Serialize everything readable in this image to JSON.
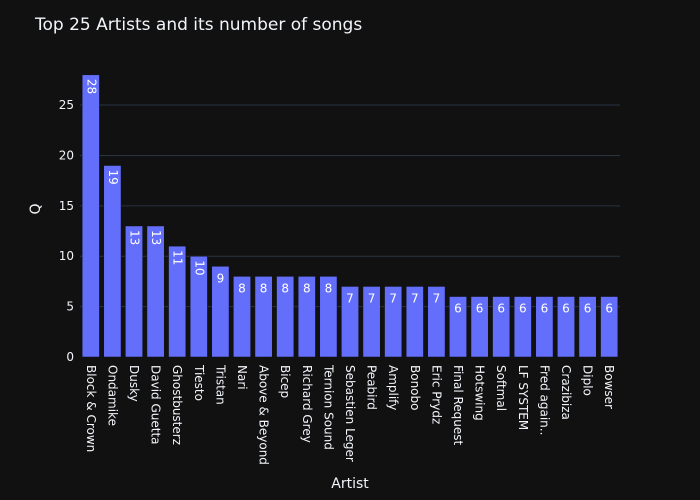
{
  "chart_data": {
    "type": "bar",
    "title": "Top 25 Artists and its number of songs",
    "xlabel": "Artist",
    "ylabel": "Q",
    "ylim": [
      0,
      29.47
    ],
    "yticks": [
      0,
      5,
      10,
      15,
      20,
      25
    ],
    "grid": true,
    "categories": [
      "Block & Crown",
      "Ondamike",
      "Dusky",
      "David Guetta",
      "Ghostbusterz",
      "Tiesto",
      "Tristan",
      "Nari",
      "Above & Beyond",
      "Bicep",
      "Richard Grey",
      "Ternion Sound",
      "Sebastien Leger",
      "Peabird",
      "Amplify",
      "Bonobo",
      "Eric Prydz",
      "Final Request",
      "Hotswing",
      "Softmal",
      "LF SYSTEM",
      "Fred again..",
      "Crazibiza",
      "Diplo",
      "Bowser"
    ],
    "values": [
      28,
      19,
      13,
      13,
      11,
      10,
      9,
      8,
      8,
      8,
      8,
      8,
      7,
      7,
      7,
      7,
      7,
      6,
      6,
      6,
      6,
      6,
      6,
      6,
      6
    ],
    "bar_color": "#636efa",
    "background": "#111111",
    "grid_color": "#283442"
  }
}
